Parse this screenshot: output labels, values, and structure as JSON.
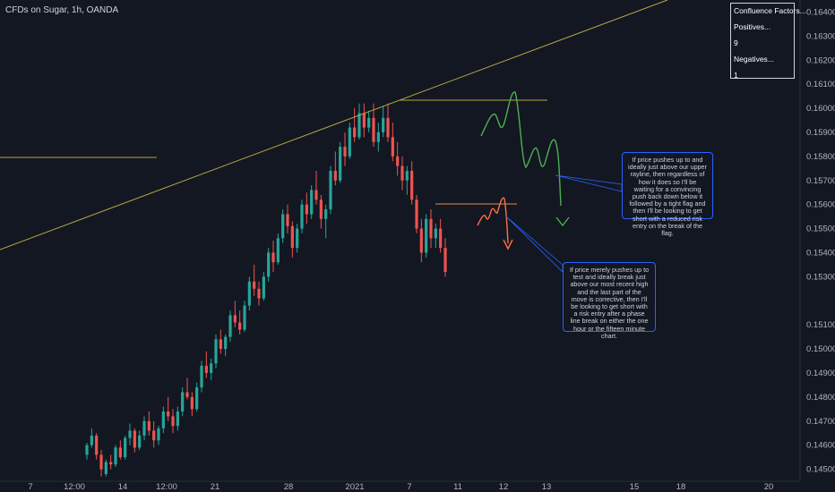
{
  "symbol": "CFDs on Sugar, 1h, OANDA",
  "chart_data": {
    "type": "candlestick",
    "title": "CFDs on Sugar, 1h, OANDA",
    "y_axis": {
      "position": "right",
      "ylim": [
        0.1445,
        0.1645
      ],
      "ticks": [
        "0.16400",
        "0.16300",
        "0.16200",
        "0.16100",
        "0.16000",
        "0.15900",
        "0.15800",
        "0.15700",
        "0.15600",
        "0.15500",
        "0.15400",
        "0.15300",
        "0.15100",
        "0.15000",
        "0.14900",
        "0.14800",
        "0.14700",
        "0.14600",
        "0.14500"
      ]
    },
    "x_axis": {
      "ticks": [
        "7",
        "12:00",
        "14",
        "12:00",
        "21",
        "28",
        "2021",
        "7",
        "11",
        "12",
        "13",
        "15",
        "18",
        "20"
      ]
    },
    "candles": [
      [
        0.1456,
        0.1461,
        0.1454,
        0.146
      ],
      [
        0.146,
        0.1467,
        0.1459,
        0.1464
      ],
      [
        0.1464,
        0.1465,
        0.1454,
        0.1456
      ],
      [
        0.1456,
        0.1458,
        0.1447,
        0.145
      ],
      [
        0.1448,
        0.1454,
        0.1447,
        0.1453
      ],
      [
        0.1453,
        0.1456,
        0.145,
        0.1452
      ],
      [
        0.1452,
        0.146,
        0.1451,
        0.1459
      ],
      [
        0.1459,
        0.1462,
        0.1454,
        0.1455
      ],
      [
        0.1455,
        0.1464,
        0.1454,
        0.1463
      ],
      [
        0.1463,
        0.1469,
        0.146,
        0.1466
      ],
      [
        0.1466,
        0.1467,
        0.1457,
        0.1459
      ],
      [
        0.1459,
        0.1466,
        0.1458,
        0.1464
      ],
      [
        0.1464,
        0.1472,
        0.1462,
        0.147
      ],
      [
        0.147,
        0.1474,
        0.1464,
        0.1466
      ],
      [
        0.1466,
        0.147,
        0.1459,
        0.1462
      ],
      [
        0.1462,
        0.1468,
        0.146,
        0.1467
      ],
      [
        0.1467,
        0.1476,
        0.1465,
        0.1474
      ],
      [
        0.1474,
        0.148,
        0.147,
        0.1472
      ],
      [
        0.1472,
        0.1475,
        0.1465,
        0.1468
      ],
      [
        0.1468,
        0.1476,
        0.1466,
        0.1474
      ],
      [
        0.1474,
        0.1484,
        0.1472,
        0.1482
      ],
      [
        0.1482,
        0.1488,
        0.1479,
        0.148
      ],
      [
        0.148,
        0.1482,
        0.1472,
        0.1475
      ],
      [
        0.1475,
        0.1486,
        0.1474,
        0.1484
      ],
      [
        0.1484,
        0.1495,
        0.1482,
        0.1493
      ],
      [
        0.1493,
        0.1499,
        0.1488,
        0.149
      ],
      [
        0.149,
        0.1496,
        0.1487,
        0.1494
      ],
      [
        0.1494,
        0.1506,
        0.1492,
        0.1504
      ],
      [
        0.1504,
        0.1508,
        0.1498,
        0.15
      ],
      [
        0.15,
        0.1506,
        0.1497,
        0.1505
      ],
      [
        0.1505,
        0.1516,
        0.1503,
        0.1514
      ],
      [
        0.1514,
        0.152,
        0.1509,
        0.1511
      ],
      [
        0.1511,
        0.1516,
        0.1506,
        0.1508
      ],
      [
        0.1508,
        0.152,
        0.1507,
        0.1518
      ],
      [
        0.1518,
        0.153,
        0.1516,
        0.1528
      ],
      [
        0.1528,
        0.1535,
        0.1522,
        0.1525
      ],
      [
        0.1525,
        0.1528,
        0.1518,
        0.1521
      ],
      [
        0.1521,
        0.1532,
        0.152,
        0.153
      ],
      [
        0.153,
        0.1542,
        0.1528,
        0.154
      ],
      [
        0.154,
        0.1545,
        0.1532,
        0.1536
      ],
      [
        0.1536,
        0.1548,
        0.1535,
        0.1546
      ],
      [
        0.1546,
        0.1558,
        0.1544,
        0.1556
      ],
      [
        0.1556,
        0.156,
        0.1548,
        0.1551
      ],
      [
        0.1551,
        0.1553,
        0.1538,
        0.1542
      ],
      [
        0.1542,
        0.1552,
        0.154,
        0.155
      ],
      [
        0.155,
        0.1562,
        0.1548,
        0.156
      ],
      [
        0.156,
        0.1565,
        0.1552,
        0.1556
      ],
      [
        0.1556,
        0.1568,
        0.1554,
        0.1566
      ],
      [
        0.1566,
        0.1574,
        0.156,
        0.1562
      ],
      [
        0.1562,
        0.1564,
        0.155,
        0.1554
      ],
      [
        0.1554,
        0.156,
        0.1546,
        0.1558
      ],
      [
        0.1558,
        0.1576,
        0.1556,
        0.1574
      ],
      [
        0.1574,
        0.1582,
        0.1568,
        0.157
      ],
      [
        0.157,
        0.1586,
        0.1569,
        0.1584
      ],
      [
        0.1584,
        0.159,
        0.1576,
        0.158
      ],
      [
        0.158,
        0.1594,
        0.1579,
        0.1592
      ],
      [
        0.1592,
        0.16,
        0.1586,
        0.1588
      ],
      [
        0.1588,
        0.1602,
        0.1587,
        0.1598
      ],
      [
        0.1598,
        0.1602,
        0.1588,
        0.1592
      ],
      [
        0.1592,
        0.1599,
        0.159,
        0.1596
      ],
      [
        0.1596,
        0.1602,
        0.1584,
        0.1586
      ],
      [
        0.1586,
        0.1594,
        0.1582,
        0.159
      ],
      [
        0.159,
        0.1601,
        0.1588,
        0.1596
      ],
      [
        0.1596,
        0.1602,
        0.1586,
        0.1588
      ],
      [
        0.1588,
        0.1594,
        0.1578,
        0.158
      ],
      [
        0.158,
        0.1586,
        0.1572,
        0.1576
      ],
      [
        0.1576,
        0.158,
        0.1566,
        0.157
      ],
      [
        0.157,
        0.1576,
        0.1564,
        0.1574
      ],
      [
        0.1574,
        0.1578,
        0.156,
        0.1562
      ],
      [
        0.1562,
        0.1564,
        0.1548,
        0.155
      ],
      [
        0.155,
        0.1554,
        0.1536,
        0.154
      ],
      [
        0.154,
        0.1556,
        0.1538,
        0.1554
      ],
      [
        0.1554,
        0.1558,
        0.1542,
        0.1546
      ],
      [
        0.1546,
        0.1552,
        0.1542,
        0.155
      ],
      [
        0.155,
        0.1554,
        0.154,
        0.1542
      ],
      [
        0.1542,
        0.1546,
        0.153,
        0.1532
      ]
    ]
  },
  "drawings": {
    "trendline_color": "#b5a642",
    "green_path_color": "#4caf50",
    "orange_path_color": "#ff7043"
  },
  "callouts": {
    "upper": "If price pushes up to and ideally just above our upper rayline, then regardless of how it does so I'll be waiting for a convincing push back down below it followed by a tight flag and then I'll be looking to get short with a reduced risk entry on the break of the flag.",
    "lower": "If price merely pushes up to test and ideally break just above our most recent high and the last part of the move is corrective, then I'll be looking to get short with a risk entry after a phase line break on either the one hour or the fifteen minute chart."
  },
  "confluence": {
    "title": "Confluence Factors...",
    "positives_label": "Positives...",
    "positives": "9",
    "negatives_label": "Negatives...",
    "negatives": "1"
  }
}
